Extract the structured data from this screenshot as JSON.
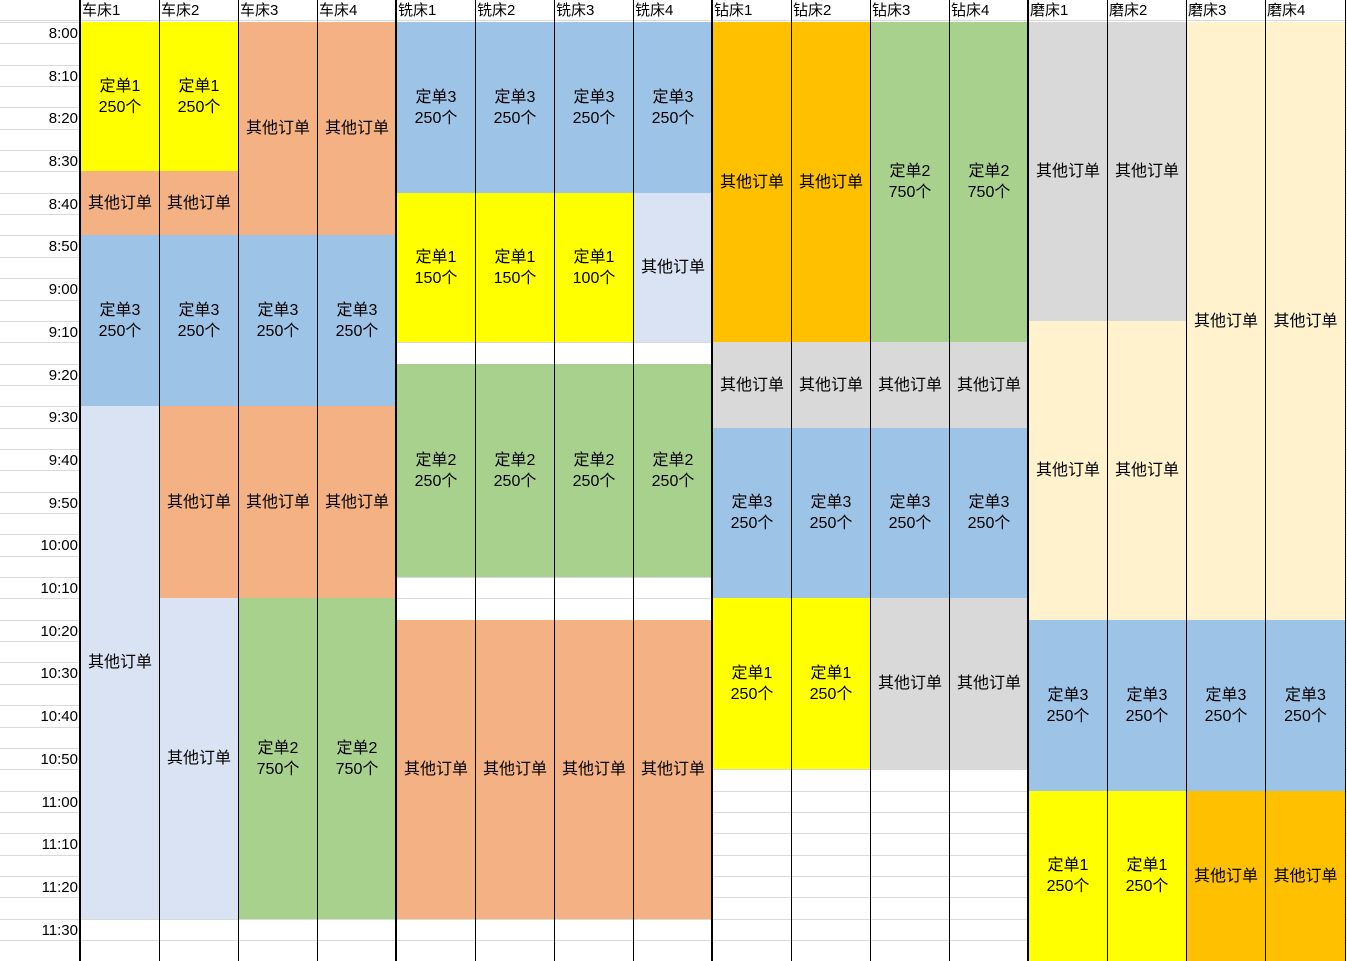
{
  "machines": [
    "车床1",
    "车床2",
    "车床3",
    "车床4",
    "铣床1",
    "铣床2",
    "铣床3",
    "铣床4",
    "钻床1",
    "钻床2",
    "钻床3",
    "钻床4",
    "磨床1",
    "磨床2",
    "磨床3",
    "磨床4"
  ],
  "times": [
    "8:00",
    "8:10",
    "8:20",
    "8:30",
    "8:40",
    "8:50",
    "9:00",
    "9:10",
    "9:20",
    "9:30",
    "9:40",
    "9:50",
    "10:00",
    "10:10",
    "10:20",
    "10:30",
    "10:40",
    "10:50",
    "11:00",
    "11:10",
    "11:20",
    "11:30"
  ],
  "colors": {
    "yellow": "#ffff00",
    "salmon": "#f4b183",
    "blue": "#9dc3e6",
    "lavender": "#dae3f3",
    "green": "#a9d18e",
    "orange": "#ffc000",
    "gray": "#d9d9d9",
    "cream": "#fff2cc"
  },
  "columns": [
    {
      "blocks": [
        {
          "label": "定单1\n250个",
          "start": "8:00",
          "end": "8:35",
          "color": "yellow"
        },
        {
          "label": "其他订单",
          "start": "8:35",
          "end": "8:50",
          "color": "salmon"
        },
        {
          "label": "定单3\n250个",
          "start": "8:50",
          "end": "9:30",
          "color": "blue"
        },
        {
          "label": "其他订单",
          "start": "9:30",
          "end": "11:30",
          "color": "lavender"
        }
      ]
    },
    {
      "blocks": [
        {
          "label": "定单1\n250个",
          "start": "8:00",
          "end": "8:35",
          "color": "yellow"
        },
        {
          "label": "其他订单",
          "start": "8:35",
          "end": "8:50",
          "color": "salmon"
        },
        {
          "label": "定单3\n250个",
          "start": "8:50",
          "end": "9:30",
          "color": "blue"
        },
        {
          "label": "其他订单",
          "start": "9:30",
          "end": "10:15",
          "color": "salmon"
        },
        {
          "label": "其他订单",
          "start": "10:15",
          "end": "11:30",
          "color": "lavender"
        }
      ]
    },
    {
      "blocks": [
        {
          "label": "其他订单",
          "start": "8:00",
          "end": "8:50",
          "color": "salmon"
        },
        {
          "label": "定单3\n250个",
          "start": "8:50",
          "end": "9:30",
          "color": "blue"
        },
        {
          "label": "其他订单",
          "start": "9:30",
          "end": "10:15",
          "color": "salmon"
        },
        {
          "label": "定单2\n750个",
          "start": "10:15",
          "end": "11:30",
          "color": "green"
        }
      ]
    },
    {
      "blocks": [
        {
          "label": "其他订单",
          "start": "8:00",
          "end": "8:50",
          "color": "salmon"
        },
        {
          "label": "定单3\n250个",
          "start": "8:50",
          "end": "9:30",
          "color": "blue"
        },
        {
          "label": "其他订单",
          "start": "9:30",
          "end": "10:15",
          "color": "salmon"
        },
        {
          "label": "定单2\n750个",
          "start": "10:15",
          "end": "11:30",
          "color": "green"
        }
      ]
    },
    {
      "blocks": [
        {
          "label": "定单3\n250个",
          "start": "8:00",
          "end": "8:40",
          "color": "blue"
        },
        {
          "label": "定单1\n150个",
          "start": "8:40",
          "end": "9:15",
          "color": "yellow"
        },
        {
          "label": "定单2\n250个",
          "start": "9:20",
          "end": "10:10",
          "color": "green"
        },
        {
          "label": "其他订单",
          "start": "10:20",
          "end": "11:30",
          "color": "salmon"
        }
      ]
    },
    {
      "blocks": [
        {
          "label": "定单3\n250个",
          "start": "8:00",
          "end": "8:40",
          "color": "blue"
        },
        {
          "label": "定单1\n150个",
          "start": "8:40",
          "end": "9:15",
          "color": "yellow"
        },
        {
          "label": "定单2\n250个",
          "start": "9:20",
          "end": "10:10",
          "color": "green"
        },
        {
          "label": "其他订单",
          "start": "10:20",
          "end": "11:30",
          "color": "salmon"
        }
      ]
    },
    {
      "blocks": [
        {
          "label": "定单3\n250个",
          "start": "8:00",
          "end": "8:40",
          "color": "blue"
        },
        {
          "label": "定单1\n100个",
          "start": "8:40",
          "end": "9:15",
          "color": "yellow"
        },
        {
          "label": "定单2\n250个",
          "start": "9:20",
          "end": "10:10",
          "color": "green"
        },
        {
          "label": "其他订单",
          "start": "10:20",
          "end": "11:30",
          "color": "salmon"
        }
      ]
    },
    {
      "blocks": [
        {
          "label": "定单3\n250个",
          "start": "8:00",
          "end": "8:40",
          "color": "blue"
        },
        {
          "label": "其他订单",
          "start": "8:40",
          "end": "9:15",
          "color": "lavender"
        },
        {
          "label": "定单2\n250个",
          "start": "9:20",
          "end": "10:10",
          "color": "green"
        },
        {
          "label": "其他订单",
          "start": "10:20",
          "end": "11:30",
          "color": "salmon"
        }
      ]
    },
    {
      "blocks": [
        {
          "label": "其他订单",
          "start": "8:00",
          "end": "9:15",
          "color": "orange"
        },
        {
          "label": "其他订单",
          "start": "9:15",
          "end": "9:35",
          "color": "gray"
        },
        {
          "label": "定单3\n250个",
          "start": "9:35",
          "end": "10:15",
          "color": "blue"
        },
        {
          "label": "定单1\n250个",
          "start": "10:15",
          "end": "10:55",
          "color": "yellow"
        }
      ]
    },
    {
      "blocks": [
        {
          "label": "其他订单",
          "start": "8:00",
          "end": "9:15",
          "color": "orange"
        },
        {
          "label": "其他订单",
          "start": "9:15",
          "end": "9:35",
          "color": "gray"
        },
        {
          "label": "定单3\n250个",
          "start": "9:35",
          "end": "10:15",
          "color": "blue"
        },
        {
          "label": "定单1\n250个",
          "start": "10:15",
          "end": "10:55",
          "color": "yellow"
        }
      ]
    },
    {
      "blocks": [
        {
          "label": "定单2\n750个",
          "start": "8:00",
          "end": "9:15",
          "color": "green"
        },
        {
          "label": "其他订单",
          "start": "9:15",
          "end": "9:35",
          "color": "gray"
        },
        {
          "label": "定单3\n250个",
          "start": "9:35",
          "end": "10:15",
          "color": "blue"
        },
        {
          "label": "其他订单",
          "start": "10:15",
          "end": "10:55",
          "color": "gray"
        }
      ]
    },
    {
      "blocks": [
        {
          "label": "定单2\n750个",
          "start": "8:00",
          "end": "9:15",
          "color": "green"
        },
        {
          "label": "其他订单",
          "start": "9:15",
          "end": "9:35",
          "color": "gray"
        },
        {
          "label": "定单3\n250个",
          "start": "9:35",
          "end": "10:15",
          "color": "blue"
        },
        {
          "label": "其他订单",
          "start": "10:15",
          "end": "10:55",
          "color": "gray"
        }
      ]
    },
    {
      "blocks": [
        {
          "label": "其他订单",
          "start": "8:00",
          "end": "9:10",
          "color": "gray"
        },
        {
          "label": "其他订单",
          "start": "9:10",
          "end": "10:20",
          "color": "cream"
        },
        {
          "label": "定单3\n250个",
          "start": "10:20",
          "end": "11:00",
          "color": "blue"
        },
        {
          "label": "定单1\n250个",
          "start": "11:00",
          "end": "11:40",
          "color": "yellow"
        }
      ]
    },
    {
      "blocks": [
        {
          "label": "其他订单",
          "start": "8:00",
          "end": "9:10",
          "color": "gray"
        },
        {
          "label": "其他订单",
          "start": "9:10",
          "end": "10:20",
          "color": "cream"
        },
        {
          "label": "定单3\n250个",
          "start": "10:20",
          "end": "11:00",
          "color": "blue"
        },
        {
          "label": "定单1\n250个",
          "start": "11:00",
          "end": "11:40",
          "color": "yellow"
        }
      ]
    },
    {
      "blocks": [
        {
          "label": "其他订单",
          "start": "8:00",
          "end": "10:20",
          "color": "cream"
        },
        {
          "label": "定单3\n250个",
          "start": "10:20",
          "end": "11:00",
          "color": "blue"
        },
        {
          "label": "其他订单",
          "start": "11:00",
          "end": "11:40",
          "color": "orange"
        }
      ]
    },
    {
      "blocks": [
        {
          "label": "其他订单",
          "start": "8:00",
          "end": "10:20",
          "color": "cream"
        },
        {
          "label": "定单3\n250个",
          "start": "10:20",
          "end": "11:00",
          "color": "blue"
        },
        {
          "label": "其他订单",
          "start": "11:00",
          "end": "11:40",
          "color": "orange"
        }
      ]
    }
  ]
}
